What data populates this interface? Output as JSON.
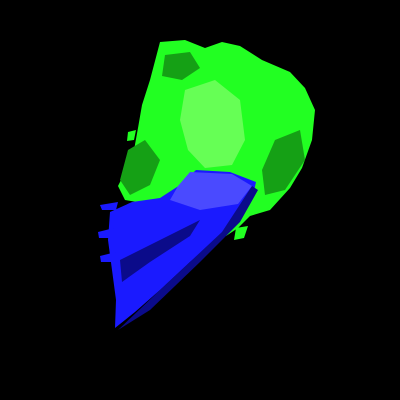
{
  "scene": {
    "background_color": "#000000",
    "surfaces": [
      {
        "name": "green-isosurface",
        "color": "#22ff22",
        "highlight": "#66ff55",
        "shadow": "#15a015"
      },
      {
        "name": "blue-isosurface",
        "color": "#1a1aff",
        "highlight": "#4a4aff",
        "shadow": "#0b0b8a"
      }
    ]
  }
}
